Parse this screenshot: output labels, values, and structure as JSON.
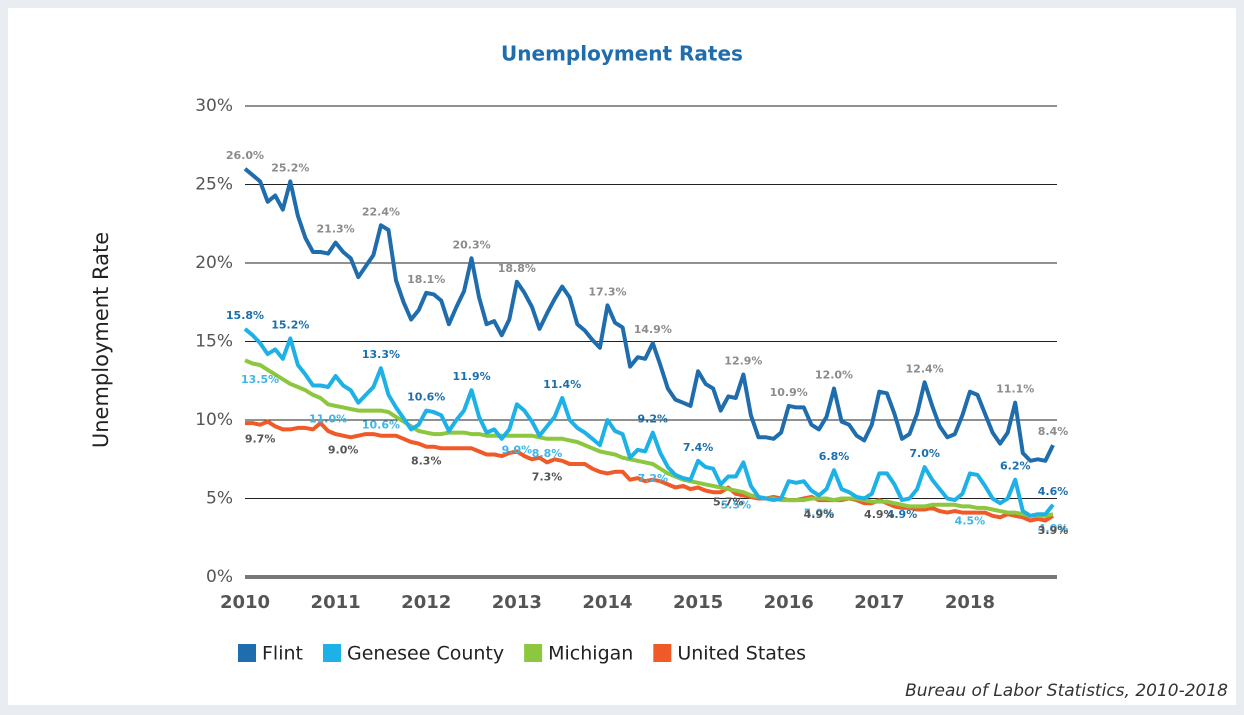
{
  "chart_data": {
    "type": "line",
    "title": "Unemployment Rates",
    "y_label": "Unemployment Rate",
    "source": "Bureau of Labor Statistics, 2010-2018",
    "categories": [
      "2010",
      null,
      null,
      null,
      null,
      null,
      null,
      null,
      null,
      null,
      null,
      null,
      "2011",
      null,
      null,
      null,
      null,
      null,
      null,
      null,
      null,
      null,
      null,
      null,
      "2012",
      null,
      null,
      null,
      null,
      null,
      null,
      null,
      null,
      null,
      null,
      null,
      "2013",
      null,
      null,
      null,
      null,
      null,
      null,
      null,
      null,
      null,
      null,
      null,
      "2014",
      null,
      null,
      null,
      null,
      null,
      null,
      null,
      null,
      null,
      null,
      null,
      "2015",
      null,
      null,
      null,
      null,
      null,
      null,
      null,
      null,
      null,
      null,
      null,
      "2016",
      null,
      null,
      null,
      null,
      null,
      null,
      null,
      null,
      null,
      null,
      null,
      "2017",
      null,
      null,
      null,
      null,
      null,
      null,
      null,
      null,
      null,
      null,
      null,
      "2018",
      null,
      null,
      null,
      null,
      null,
      null,
      null,
      null,
      null,
      null,
      null
    ],
    "ylim": [
      0,
      30
    ],
    "yticks": [
      {
        "value": 0,
        "label": "0%"
      },
      {
        "value": 5,
        "label": "5%"
      },
      {
        "value": 10,
        "label": "10%"
      },
      {
        "value": 15,
        "label": "15%"
      },
      {
        "value": 20,
        "label": "20%"
      },
      {
        "value": 25,
        "label": "25%"
      },
      {
        "value": 30,
        "label": "30%"
      }
    ],
    "grid": true,
    "legend": "bottom",
    "series": [
      {
        "name": "Flint",
        "color": "#1f6dad",
        "label_color": "#8c8c8c",
        "values": [
          26.0,
          25.6,
          25.2,
          23.9,
          24.3,
          23.4,
          25.2,
          23.0,
          21.6,
          20.7,
          20.7,
          20.6,
          21.3,
          20.7,
          20.3,
          19.1,
          19.8,
          20.5,
          22.4,
          22.1,
          18.9,
          17.5,
          16.4,
          17.0,
          18.1,
          18.0,
          17.6,
          16.1,
          17.2,
          18.2,
          20.3,
          17.8,
          16.1,
          16.3,
          15.4,
          16.4,
          18.8,
          18.1,
          17.2,
          15.8,
          16.8,
          17.7,
          18.5,
          17.8,
          16.1,
          15.7,
          15.1,
          14.6,
          17.3,
          16.2,
          15.9,
          13.4,
          14.0,
          13.9,
          14.9,
          13.5,
          12.0,
          11.3,
          11.1,
          10.9,
          13.1,
          12.3,
          12.0,
          10.6,
          11.5,
          11.4,
          12.9,
          10.3,
          8.9,
          8.9,
          8.8,
          9.2,
          10.9,
          10.8,
          10.8,
          9.7,
          9.4,
          10.2,
          12.0,
          9.9,
          9.7,
          9.0,
          8.7,
          9.7,
          11.8,
          11.7,
          10.4,
          8.8,
          9.1,
          10.4,
          12.4,
          10.9,
          9.6,
          8.9,
          9.1,
          10.3,
          11.8,
          11.6,
          10.4,
          9.2,
          8.5,
          9.2,
          11.1,
          7.9,
          7.4,
          7.5,
          7.4,
          8.4
        ],
        "value_labels": [
          "26.0%",
          null,
          null,
          null,
          null,
          null,
          "25.2%",
          null,
          null,
          null,
          null,
          null,
          "21.3%",
          null,
          null,
          null,
          null,
          null,
          "22.4%",
          null,
          null,
          null,
          null,
          null,
          "18.1%",
          null,
          null,
          null,
          null,
          null,
          "20.3%",
          null,
          null,
          null,
          null,
          null,
          "18.8%",
          null,
          null,
          null,
          null,
          null,
          null,
          null,
          null,
          null,
          null,
          null,
          "17.3%",
          null,
          null,
          null,
          null,
          null,
          "14.9%",
          null,
          null,
          null,
          null,
          null,
          null,
          null,
          null,
          null,
          null,
          null,
          "12.9%",
          null,
          null,
          null,
          null,
          null,
          "10.9%",
          null,
          null,
          null,
          null,
          null,
          "12.0%",
          null,
          null,
          null,
          null,
          null,
          null,
          null,
          null,
          null,
          null,
          null,
          "12.4%",
          null,
          null,
          null,
          null,
          null,
          null,
          null,
          null,
          null,
          null,
          null,
          "11.1%",
          null,
          null,
          null,
          null,
          "8.4%"
        ]
      },
      {
        "name": "Genesee County",
        "color": "#1eb1e7",
        "label_color": "#1a6fae",
        "values": [
          15.8,
          15.4,
          14.9,
          14.2,
          14.5,
          13.9,
          15.2,
          13.5,
          12.9,
          12.2,
          12.2,
          12.1,
          12.8,
          12.2,
          11.9,
          11.1,
          11.6,
          12.1,
          13.3,
          11.6,
          10.8,
          10.1,
          9.4,
          9.7,
          10.6,
          10.5,
          10.3,
          9.3,
          10.0,
          10.6,
          11.9,
          10.2,
          9.2,
          9.4,
          8.8,
          9.4,
          11.0,
          10.6,
          9.9,
          9.0,
          9.6,
          10.2,
          11.4,
          10.0,
          9.5,
          9.2,
          8.8,
          8.4,
          10.0,
          9.3,
          9.1,
          7.6,
          8.1,
          8.0,
          9.2,
          7.9,
          7.0,
          6.5,
          6.3,
          6.2,
          7.4,
          7.0,
          6.9,
          5.9,
          6.4,
          6.4,
          7.3,
          5.8,
          5.1,
          5.0,
          4.9,
          5.0,
          6.1,
          6.0,
          6.1,
          5.5,
          5.2,
          5.6,
          6.8,
          5.6,
          5.4,
          5.1,
          5.0,
          5.3,
          6.6,
          6.6,
          5.9,
          4.9,
          5.0,
          5.6,
          7.0,
          6.2,
          5.6,
          5.0,
          4.9,
          5.3,
          6.6,
          6.5,
          5.8,
          5.0,
          4.7,
          5.0,
          6.2,
          4.2,
          3.9,
          4.0,
          4.0,
          4.6
        ],
        "value_labels": [
          "15.8%",
          null,
          null,
          null,
          null,
          null,
          "15.2%",
          null,
          null,
          null,
          null,
          null,
          null,
          null,
          null,
          null,
          null,
          null,
          "13.3%",
          null,
          null,
          null,
          null,
          null,
          "10.6%",
          null,
          null,
          null,
          null,
          null,
          "11.9%",
          null,
          null,
          null,
          null,
          null,
          null,
          null,
          null,
          null,
          null,
          null,
          "11.4%",
          null,
          null,
          null,
          null,
          null,
          null,
          null,
          null,
          null,
          null,
          null,
          "9.2%",
          null,
          null,
          null,
          null,
          null,
          "7.4%",
          null,
          null,
          null,
          null,
          null,
          null,
          null,
          null,
          null,
          null,
          null,
          null,
          null,
          null,
          null,
          null,
          null,
          "6.8%",
          null,
          null,
          null,
          null,
          null,
          null,
          null,
          null,
          "4.9%",
          null,
          null,
          "7.0%",
          null,
          null,
          null,
          null,
          null,
          null,
          null,
          null,
          null,
          null,
          null,
          "6.2%",
          null,
          null,
          null,
          null,
          "4.6%"
        ]
      },
      {
        "name": "Michigan",
        "color": "#8dc63f",
        "label_color": "#3fb6e6",
        "values": [
          13.8,
          13.6,
          13.5,
          13.2,
          12.9,
          12.6,
          12.3,
          12.1,
          11.9,
          11.6,
          11.4,
          11.0,
          10.9,
          10.8,
          10.7,
          10.6,
          10.6,
          10.6,
          10.6,
          10.5,
          10.2,
          9.9,
          9.6,
          9.3,
          9.2,
          9.1,
          9.1,
          9.2,
          9.2,
          9.2,
          9.1,
          9.1,
          9.0,
          9.0,
          9.0,
          9.0,
          9.0,
          9.0,
          9.0,
          8.9,
          8.8,
          8.8,
          8.8,
          8.7,
          8.6,
          8.4,
          8.2,
          8.0,
          7.9,
          7.8,
          7.6,
          7.5,
          7.4,
          7.3,
          7.2,
          6.9,
          6.6,
          6.4,
          6.2,
          6.1,
          6.0,
          5.9,
          5.8,
          5.7,
          5.6,
          5.5,
          5.4,
          5.2,
          5.1,
          5.0,
          5.0,
          4.9,
          4.9,
          4.9,
          4.9,
          5.0,
          5.0,
          5.0,
          4.9,
          5.0,
          5.0,
          5.0,
          4.9,
          4.8,
          4.8,
          4.8,
          4.7,
          4.6,
          4.5,
          4.5,
          4.5,
          4.6,
          4.6,
          4.6,
          4.6,
          4.5,
          4.5,
          4.4,
          4.4,
          4.3,
          4.2,
          4.1,
          4.1,
          4.0,
          3.9,
          3.9,
          3.9,
          4.0
        ],
        "value_labels": [
          null,
          null,
          "13.5%",
          null,
          null,
          null,
          null,
          null,
          null,
          null,
          null,
          "11.0%",
          null,
          null,
          null,
          null,
          null,
          null,
          "10.6%",
          null,
          null,
          null,
          null,
          null,
          null,
          null,
          null,
          null,
          null,
          null,
          null,
          null,
          null,
          null,
          null,
          null,
          "9.0%",
          null,
          null,
          null,
          "8.8%",
          null,
          null,
          null,
          null,
          null,
          null,
          null,
          null,
          null,
          null,
          null,
          null,
          null,
          "7.2%",
          null,
          null,
          null,
          null,
          null,
          null,
          null,
          null,
          null,
          null,
          "5.5%",
          null,
          null,
          null,
          null,
          null,
          null,
          null,
          null,
          null,
          null,
          "5.0%",
          null,
          null,
          null,
          null,
          null,
          null,
          null,
          null,
          null,
          null,
          null,
          null,
          null,
          null,
          null,
          null,
          null,
          null,
          null,
          "4.5%",
          null,
          null,
          null,
          null,
          null,
          null,
          null,
          null,
          null,
          null,
          "4.0%"
        ]
      },
      {
        "name": "United States",
        "color": "#f05a28",
        "label_color": "#555555",
        "values": [
          9.8,
          9.8,
          9.7,
          9.9,
          9.6,
          9.4,
          9.4,
          9.5,
          9.5,
          9.4,
          9.8,
          9.3,
          9.1,
          9.0,
          8.9,
          9.0,
          9.1,
          9.1,
          9.0,
          9.0,
          9.0,
          8.8,
          8.6,
          8.5,
          8.3,
          8.3,
          8.2,
          8.2,
          8.2,
          8.2,
          8.2,
          8.0,
          7.8,
          7.8,
          7.7,
          7.9,
          8.0,
          7.7,
          7.5,
          7.6,
          7.3,
          7.5,
          7.4,
          7.2,
          7.2,
          7.2,
          6.9,
          6.7,
          6.6,
          6.7,
          6.7,
          6.2,
          6.3,
          6.1,
          6.2,
          6.1,
          5.9,
          5.7,
          5.8,
          5.6,
          5.7,
          5.5,
          5.4,
          5.4,
          5.7,
          5.3,
          5.2,
          5.1,
          5.0,
          5.0,
          5.1,
          5.0,
          4.9,
          4.9,
          5.0,
          5.1,
          4.9,
          4.9,
          4.9,
          4.9,
          5.0,
          4.9,
          4.7,
          4.7,
          4.9,
          4.7,
          4.5,
          4.4,
          4.4,
          4.3,
          4.3,
          4.4,
          4.2,
          4.1,
          4.2,
          4.1,
          4.1,
          4.1,
          4.1,
          3.9,
          3.8,
          4.0,
          3.9,
          3.8,
          3.6,
          3.7,
          3.6,
          3.9
        ],
        "value_labels": [
          null,
          null,
          "9.7%",
          null,
          null,
          null,
          null,
          null,
          null,
          null,
          null,
          null,
          null,
          "9.0%",
          null,
          null,
          null,
          null,
          null,
          null,
          null,
          null,
          null,
          null,
          "8.3%",
          null,
          null,
          null,
          null,
          null,
          null,
          null,
          null,
          null,
          null,
          null,
          null,
          null,
          null,
          null,
          "7.3%",
          null,
          null,
          null,
          null,
          null,
          null,
          null,
          null,
          null,
          null,
          null,
          null,
          null,
          null,
          null,
          null,
          null,
          null,
          null,
          null,
          null,
          null,
          null,
          "5.7%",
          null,
          null,
          null,
          null,
          null,
          null,
          null,
          null,
          null,
          null,
          null,
          "4.9%",
          null,
          null,
          null,
          null,
          null,
          null,
          null,
          "4.9%",
          null,
          null,
          null,
          null,
          null,
          null,
          null,
          null,
          null,
          null,
          null,
          null,
          null,
          null,
          null,
          null,
          null,
          null,
          null,
          null,
          null,
          null,
          "3.9%"
        ]
      }
    ]
  }
}
